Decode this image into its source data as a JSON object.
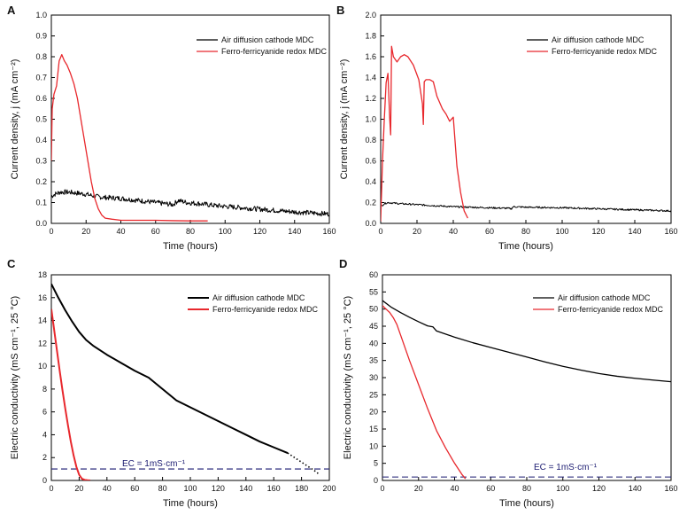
{
  "chart_data": [
    {
      "type": "line",
      "panel": "A",
      "xlabel": "Time (hours)",
      "ylabel": "Current density, j (mA cm⁻²)",
      "xlim": [
        0,
        160
      ],
      "ylim": [
        0,
        1.0
      ],
      "xticks": [
        0,
        20,
        40,
        60,
        80,
        100,
        120,
        140,
        160
      ],
      "yticks": [
        0.0,
        0.1,
        0.2,
        0.3,
        0.4,
        0.5,
        0.6,
        0.7,
        0.8,
        0.9,
        1.0
      ],
      "legend_position": "top-right",
      "series": [
        {
          "name": "Air diffusion cathode MDC",
          "color": "#000000",
          "noise": 0.012,
          "x": [
            0,
            2,
            5,
            10,
            15,
            20,
            25,
            30,
            40,
            50,
            60,
            65,
            70,
            73,
            78,
            85,
            95,
            110,
            125,
            140,
            150,
            160
          ],
          "y": [
            0.13,
            0.14,
            0.15,
            0.15,
            0.145,
            0.14,
            0.13,
            0.125,
            0.12,
            0.11,
            0.1,
            0.095,
            0.09,
            0.11,
            0.1,
            0.095,
            0.085,
            0.075,
            0.065,
            0.055,
            0.05,
            0.045
          ]
        },
        {
          "name": "Ferro-ferricyanide redox MDC",
          "color": "#e8282d",
          "noise": 0,
          "x": [
            0,
            0.5,
            1.5,
            3,
            4.5,
            6,
            7.5,
            9,
            11,
            13,
            15,
            17,
            19,
            21,
            23,
            25,
            27,
            29,
            31,
            35,
            40,
            50,
            60,
            70,
            80,
            90
          ],
          "y": [
            0.3,
            0.55,
            0.62,
            0.66,
            0.78,
            0.81,
            0.78,
            0.76,
            0.72,
            0.67,
            0.6,
            0.5,
            0.4,
            0.3,
            0.2,
            0.12,
            0.07,
            0.04,
            0.025,
            0.02,
            0.015,
            0.015,
            0.015,
            0.013,
            0.012,
            0.012
          ]
        }
      ]
    },
    {
      "type": "line",
      "panel": "B",
      "xlabel": "Time (hours)",
      "ylabel": "Current density, j (mA cm⁻²)",
      "xlim": [
        0,
        160
      ],
      "ylim": [
        0,
        2.0
      ],
      "xticks": [
        0,
        20,
        40,
        60,
        80,
        100,
        120,
        140,
        160
      ],
      "yticks": [
        0.0,
        0.2,
        0.4,
        0.6,
        0.8,
        1.0,
        1.2,
        1.4,
        1.6,
        1.8,
        2.0
      ],
      "legend_position": "top-right",
      "series": [
        {
          "name": "Air diffusion cathode MDC",
          "color": "#000000",
          "noise": 0.008,
          "x": [
            0,
            2,
            4,
            10,
            20,
            30,
            40,
            50,
            60,
            70,
            72,
            73,
            80,
            100,
            120,
            140,
            160
          ],
          "y": [
            0.16,
            0.19,
            0.2,
            0.19,
            0.18,
            0.17,
            0.16,
            0.155,
            0.15,
            0.145,
            0.14,
            0.16,
            0.155,
            0.15,
            0.14,
            0.13,
            0.12
          ]
        },
        {
          "name": "Ferro-ferricyanide redox MDC",
          "color": "#e8282d",
          "noise": 0,
          "x": [
            0,
            1,
            2,
            3,
            4,
            5,
            5.5,
            6,
            7,
            9,
            11,
            13,
            15,
            18,
            21,
            23,
            23.5,
            24,
            25,
            27,
            29,
            31,
            34,
            36,
            38,
            40,
            42,
            44,
            46,
            48
          ],
          "y": [
            0.02,
            0.6,
            1.0,
            1.35,
            1.44,
            1.0,
            0.85,
            1.7,
            1.6,
            1.55,
            1.6,
            1.62,
            1.6,
            1.52,
            1.38,
            1.15,
            0.95,
            1.36,
            1.38,
            1.38,
            1.36,
            1.22,
            1.1,
            1.05,
            0.98,
            1.02,
            0.55,
            0.3,
            0.12,
            0.05
          ]
        }
      ]
    },
    {
      "type": "line",
      "panel": "C",
      "xlabel": "Time (hours)",
      "ylabel": "Electric conductivity (mS cm⁻¹, 25 °C)",
      "xlim": [
        0,
        200
      ],
      "ylim": [
        0,
        18
      ],
      "xticks": [
        0,
        20,
        40,
        60,
        80,
        100,
        120,
        140,
        160,
        180,
        200
      ],
      "yticks": [
        0,
        2,
        4,
        6,
        8,
        10,
        12,
        14,
        16,
        18
      ],
      "legend_position": "top-right",
      "annotation": "EC = 1mS·cm⁻¹",
      "reference_line": 1.0,
      "series": [
        {
          "name": "Air diffusion cathode MDC",
          "color": "#000000",
          "noise": 0,
          "x": [
            0,
            5,
            10,
            15,
            20,
            25,
            30,
            40,
            50,
            60,
            70,
            80,
            90,
            100,
            110,
            120,
            130,
            140,
            150,
            160,
            170
          ],
          "y": [
            17.2,
            16.0,
            14.9,
            13.9,
            13.0,
            12.3,
            11.8,
            11.0,
            10.3,
            9.6,
            9.0,
            8.0,
            7.0,
            6.4,
            5.8,
            5.2,
            4.6,
            4.0,
            3.4,
            2.9,
            2.4
          ],
          "extrapolation": {
            "x": [
              170,
              180,
              190,
              193
            ],
            "y": [
              2.4,
              1.6,
              0.8,
              0.5
            ]
          }
        },
        {
          "name": "Ferro-ferricyanide redox MDC",
          "color": "#e8282d",
          "noise": 0,
          "x": [
            0,
            2,
            4,
            6,
            8,
            10,
            12,
            14,
            16,
            18,
            20,
            22,
            24,
            26,
            28
          ],
          "y": [
            15.0,
            13.2,
            11.4,
            9.6,
            7.9,
            6.3,
            4.8,
            3.4,
            2.2,
            1.2,
            0.5,
            0.15,
            0.05,
            0.02,
            0.0
          ]
        }
      ]
    },
    {
      "type": "line",
      "panel": "D",
      "xlabel": "Time (hours)",
      "ylabel": "Electric conductivity (mS cm⁻¹, 25 °C)",
      "xlim": [
        0,
        160
      ],
      "ylim": [
        0,
        60
      ],
      "xticks": [
        0,
        20,
        40,
        60,
        80,
        100,
        120,
        140,
        160
      ],
      "yticks": [
        0,
        5,
        10,
        15,
        20,
        25,
        30,
        35,
        40,
        45,
        50,
        55,
        60
      ],
      "legend_position": "top-right",
      "annotation": "EC = 1mS·cm⁻¹",
      "reference_line": 1.0,
      "series": [
        {
          "name": "Air diffusion cathode MDC",
          "color": "#000000",
          "noise": 0,
          "x": [
            0,
            5,
            10,
            15,
            20,
            25,
            28,
            30,
            40,
            50,
            60,
            70,
            80,
            90,
            100,
            110,
            120,
            130,
            140,
            150,
            160
          ],
          "y": [
            52.5,
            50.5,
            49.0,
            47.6,
            46.3,
            45.1,
            44.8,
            43.6,
            41.8,
            40.2,
            38.8,
            37.4,
            36.0,
            34.6,
            33.3,
            32.2,
            31.2,
            30.4,
            29.8,
            29.3,
            28.8
          ]
        },
        {
          "name": "Ferro-ferricyanide redox MDC",
          "color": "#e8282d",
          "noise": 0,
          "x": [
            0,
            2,
            4,
            6,
            8,
            10,
            15,
            20,
            25,
            30,
            35,
            40,
            44,
            46
          ],
          "y": [
            51.0,
            50.0,
            49.0,
            47.5,
            45.5,
            42.5,
            35.0,
            28.0,
            21.0,
            14.5,
            9.5,
            5.0,
            1.8,
            0.5
          ]
        }
      ]
    }
  ]
}
